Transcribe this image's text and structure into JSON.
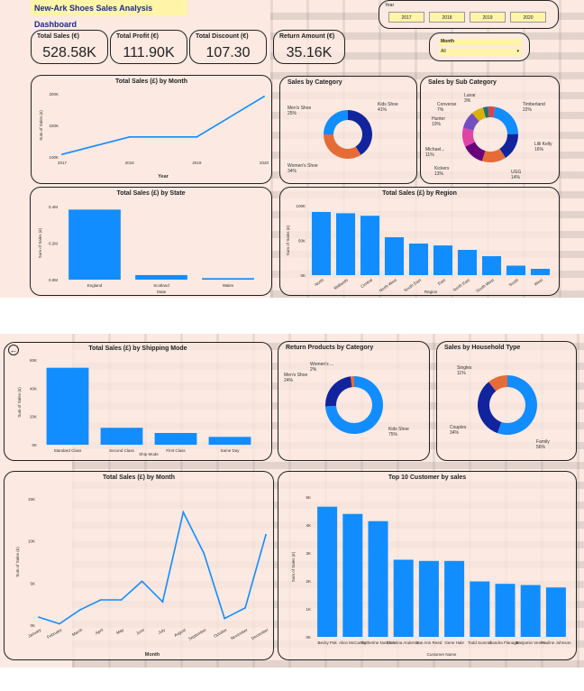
{
  "dashboard": {
    "title": "New-Ark Shoes Sales Analysis Dashboard",
    "year_label": "Year",
    "years": [
      "2017",
      "2018",
      "2019",
      "2020"
    ],
    "month_label": "Month",
    "month_value": "All",
    "kpis": [
      {
        "label": "Total Sales (€)",
        "value": "528.58K"
      },
      {
        "label": "Total Profit (€)",
        "value": "111.90K"
      },
      {
        "label": "Total Discount (€)",
        "value": "107.30"
      },
      {
        "label": "Return Amount (€)",
        "value": "35.16K"
      }
    ]
  },
  "colors": {
    "bar": "#118dff",
    "navy": "#12239e",
    "orange": "#e66c37",
    "purple": "#6b007b",
    "pink": "#e044a7",
    "darkpurple": "#744ec2",
    "yellow": "#d9b300",
    "teal": "#197278"
  },
  "chart_data": [
    {
      "id": "sales_by_month_year",
      "type": "line",
      "title": "Total Sales (£) by Month",
      "xlabel": "Year",
      "ylabel": "Sum of Sales (£)",
      "x": [
        "2017",
        "2018",
        "2019",
        "2020"
      ],
      "y_ticks": [
        "100K",
        "150K",
        "200K"
      ],
      "values": [
        95,
        128,
        128,
        205
      ],
      "ylim": [
        90,
        210
      ]
    },
    {
      "id": "sales_by_category",
      "type": "pie",
      "title": "Sales by Category",
      "slices": [
        {
          "label": "Kids Shoe",
          "pct_label": "41%",
          "value": 41,
          "color": "#12239e"
        },
        {
          "label": "Women's Shoe",
          "pct_label": "34%",
          "value": 34,
          "color": "#e66c37"
        },
        {
          "label": "Men's Shoe",
          "pct_label": "25%",
          "value": 25,
          "color": "#118dff"
        }
      ]
    },
    {
      "id": "sales_by_subcategory",
      "type": "pie",
      "title": "Sales by Sub Category",
      "slices": [
        {
          "label": "Timberland",
          "pct_label": "22%",
          "value": 22,
          "color": "#118dff"
        },
        {
          "label": "Lilli Kelly",
          "pct_label": "16%",
          "value": 16,
          "color": "#12239e"
        },
        {
          "label": "UGG",
          "pct_label": "14%",
          "value": 14,
          "color": "#e66c37"
        },
        {
          "label": "Kickers",
          "pct_label": "13%",
          "value": 13,
          "color": "#6b007b"
        },
        {
          "label": "Michael...",
          "pct_label": "11%",
          "value": 11,
          "color": "#e044a7"
        },
        {
          "label": "Hunter",
          "pct_label": "10%",
          "value": 10,
          "color": "#744ec2"
        },
        {
          "label": "Converse",
          "pct_label": "7%",
          "value": 7,
          "color": "#d9b300"
        },
        {
          "label": "Lunar",
          "pct_label": "3%",
          "value": 3,
          "color": "#197278"
        },
        {
          "label": "",
          "pct_label": "",
          "value": 4,
          "color": "#d64550"
        }
      ]
    },
    {
      "id": "sales_by_state",
      "type": "bar",
      "title": "Total Sales (£) by State",
      "xlabel": "State",
      "ylabel": "Sum of Sales (£)",
      "categories": [
        "England",
        "Scotland",
        "Wales"
      ],
      "values": [
        0.46,
        0.03,
        0.01
      ],
      "y_ticks": [
        "0.0M",
        "0.2M",
        "0.4M"
      ],
      "ylim": [
        0,
        0.48
      ]
    },
    {
      "id": "sales_by_region",
      "type": "bar",
      "title": "Total Sales (£) by Region",
      "xlabel": "Region",
      "ylabel": "Sum of Sales (£)",
      "categories": [
        "North",
        "Midlands",
        "Central",
        "North West",
        "South East",
        "East",
        "North East",
        "South West",
        "South",
        "West"
      ],
      "values": [
        100,
        98,
        94,
        60,
        50,
        47,
        40,
        30,
        15,
        10
      ],
      "y_ticks": [
        "0K",
        "50K",
        "100K"
      ],
      "ylim": [
        0,
        110
      ]
    },
    {
      "id": "sales_by_ship_mode",
      "type": "bar",
      "title": "Total Sales (£) by Shipping Mode",
      "xlabel": "Ship Mode",
      "ylabel": "Sum of Sales (£)",
      "categories": [
        "Standard Class",
        "Second Class",
        "First Class",
        "Same Day"
      ],
      "values": [
        59,
        13,
        9,
        6
      ],
      "y_ticks": [
        "0K",
        "20K",
        "40K",
        "60K"
      ],
      "ylim": [
        0,
        65
      ]
    },
    {
      "id": "return_by_category",
      "type": "pie",
      "title": "Return Products by Category",
      "slices": [
        {
          "label": "Kids Shoe",
          "pct_label": "75%",
          "value": 75,
          "color": "#118dff"
        },
        {
          "label": "Men's Shoe",
          "pct_label": "24%",
          "value": 24,
          "color": "#12239e"
        },
        {
          "label": "Women's ...",
          "pct_label": "2%",
          "value": 2,
          "color": "#e66c37"
        }
      ]
    },
    {
      "id": "sales_by_household",
      "type": "pie",
      "title": "Sales by Household Type",
      "slices": [
        {
          "label": "Family",
          "pct_label": "56%",
          "value": 56,
          "color": "#118dff"
        },
        {
          "label": "Couples",
          "pct_label": "34%",
          "value": 34,
          "color": "#12239e"
        },
        {
          "label": "Singles",
          "pct_label": "11%",
          "value": 11,
          "color": "#e66c37"
        }
      ]
    },
    {
      "id": "sales_by_month",
      "type": "line",
      "title": "Total Sales (£) by Month",
      "xlabel": "Month",
      "ylabel": "Sum of Sales (£)",
      "x": [
        "January",
        "February",
        "March",
        "April",
        "May",
        "June",
        "July",
        "August",
        "September",
        "October",
        "November",
        "December"
      ],
      "values": [
        1.2,
        0.2,
        2.3,
        3.8,
        3.8,
        6.6,
        3.5,
        17.0,
        10.8,
        1.0,
        2.6,
        13.6
      ],
      "y_ticks": [
        "0K",
        "5K",
        "10K",
        "15K"
      ],
      "ylim": [
        0,
        19
      ]
    },
    {
      "id": "top10_customers",
      "type": "bar",
      "title": "Top 10 Customer by sales",
      "xlabel": "Customer Name",
      "ylabel": "Sum of Sales (£)",
      "categories": [
        "Becky Pak",
        "Alice McCarthy",
        "Katherine Nockton",
        "Christina Anderson",
        "Sue Ann Reed",
        "Gene Hale",
        "Todd Sumrall",
        "Sandra Flanagan",
        "Benjamin Venier",
        "Pauline Johnson"
      ],
      "values": [
        5.4,
        5.1,
        4.8,
        3.2,
        3.15,
        3.15,
        2.3,
        2.2,
        2.15,
        2.05
      ],
      "y_ticks": [
        "0K",
        "1K",
        "2K",
        "3K",
        "4K",
        "5K"
      ],
      "ylim": [
        0,
        5.8
      ]
    }
  ]
}
